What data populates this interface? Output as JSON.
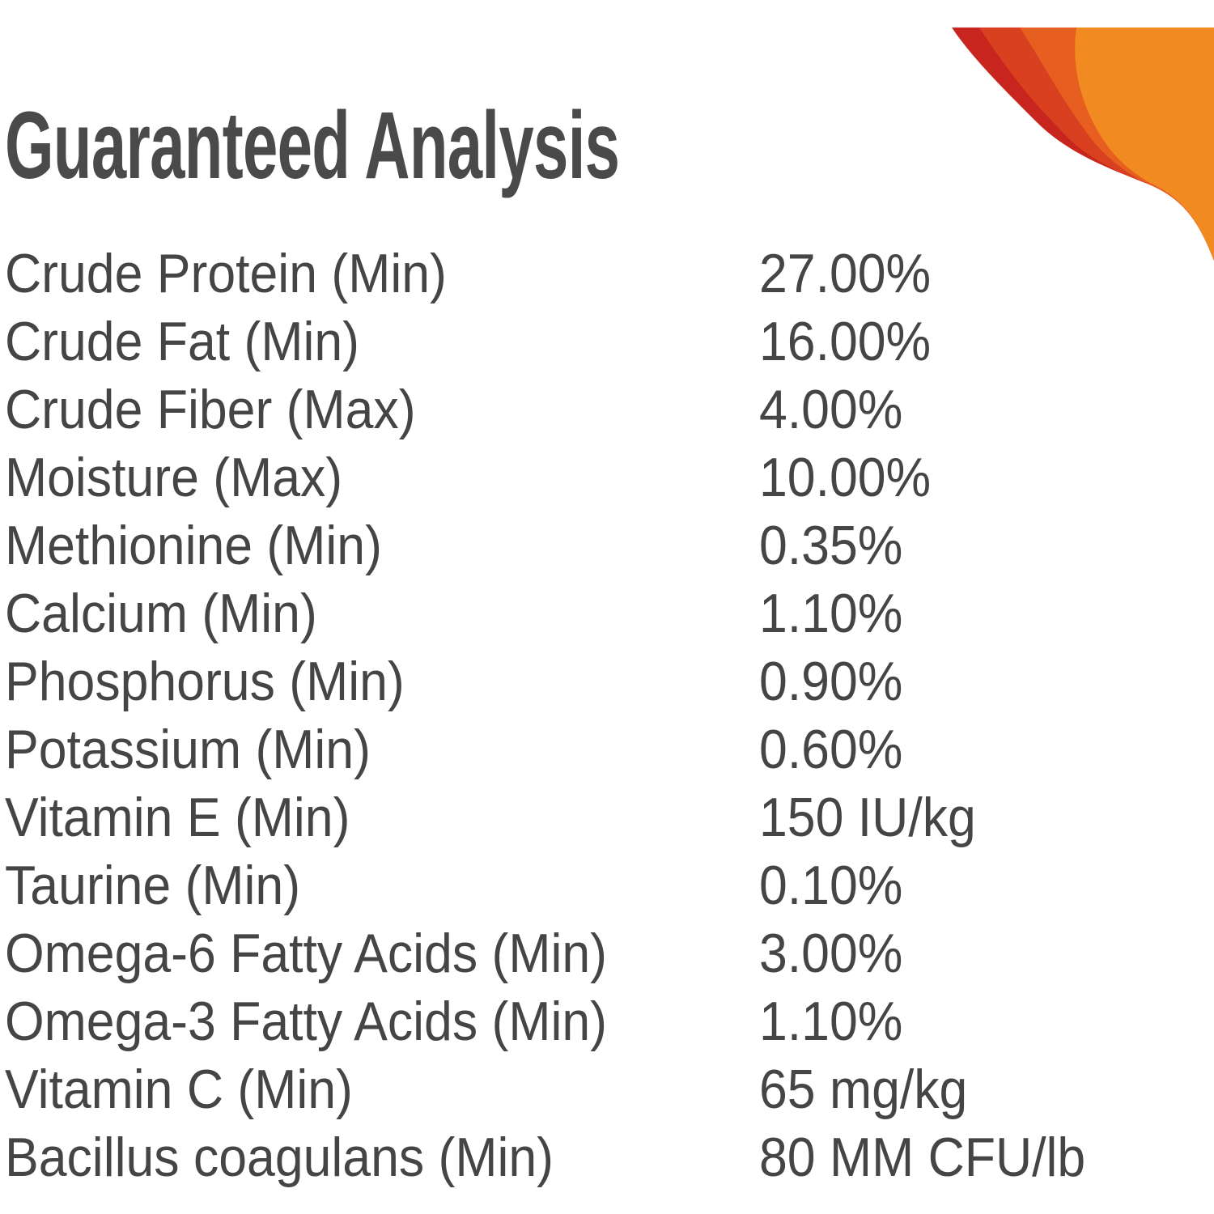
{
  "title": "Guaranteed Analysis",
  "accent_colors": [
    "#c8251f",
    "#e0521f",
    "#f28a22"
  ],
  "rows": [
    {
      "label": "Crude Protein (Min)",
      "value": "27.00%"
    },
    {
      "label": "Crude Fat (Min)",
      "value": "16.00%"
    },
    {
      "label": "Crude Fiber (Max)",
      "value": "4.00%"
    },
    {
      "label": "Moisture (Max)",
      "value": "10.00%"
    },
    {
      "label": "Methionine (Min)",
      "value": "0.35%"
    },
    {
      "label": "Calcium (Min)",
      "value": "1.10%"
    },
    {
      "label": "Phosphorus (Min)",
      "value": "0.90%"
    },
    {
      "label": "Potassium (Min)",
      "value": "0.60%"
    },
    {
      "label": "Vitamin E (Min)",
      "value": "150 IU/kg"
    },
    {
      "label": "Taurine (Min)",
      "value": "0.10%"
    },
    {
      "label": "Omega-6 Fatty Acids (Min)",
      "value": "3.00%"
    },
    {
      "label": "Omega-3 Fatty Acids (Min)",
      "value": "1.10%"
    },
    {
      "label": "Vitamin C (Min)",
      "value": "65 mg/kg"
    },
    {
      "label": "Bacillus coagulans (Min)",
      "value": "80 MM CFU/lb"
    }
  ]
}
